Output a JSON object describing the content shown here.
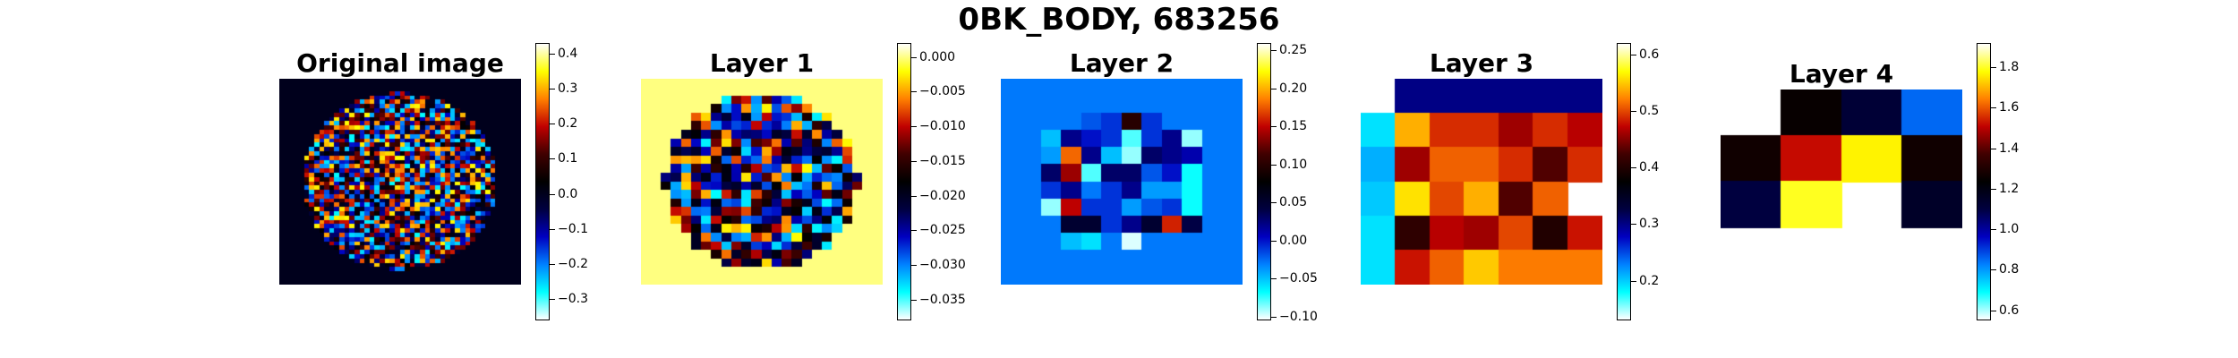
{
  "figure": {
    "suptitle": "0BK_BODY, 683256"
  },
  "colormap": {
    "name": "diverging-flag",
    "stops": [
      "#ffffff",
      "#00ffff",
      "#0080ff",
      "#0000c0",
      "#000040",
      "#000000",
      "#400000",
      "#c00000",
      "#ff8000",
      "#ffff00",
      "#ffffff"
    ]
  },
  "chart_data": [
    {
      "type": "heatmap",
      "title": "Original image",
      "grid": [
        48,
        48
      ],
      "shape": "disc",
      "background_value": 0.0,
      "colorbar": {
        "vmin": -0.36,
        "vmax": 0.43,
        "ticks": [
          -0.3,
          -0.2,
          -0.1,
          0.0,
          0.1,
          0.2,
          0.3,
          0.4
        ],
        "tick_labels": [
          "−0.3",
          "−0.2",
          "−0.1",
          "0.0",
          "0.1",
          "0.2",
          "0.3",
          "0.4"
        ]
      }
    },
    {
      "type": "heatmap",
      "title": "Layer 1",
      "grid": [
        24,
        24
      ],
      "shape": "disc",
      "background_value": 0.0,
      "colorbar": {
        "vmin": -0.038,
        "vmax": 0.002,
        "ticks": [
          -0.035,
          -0.03,
          -0.025,
          -0.02,
          -0.015,
          -0.01,
          -0.005,
          0.0
        ],
        "tick_labels": [
          "−0.035",
          "−0.030",
          "−0.025",
          "−0.020",
          "−0.015",
          "−0.010",
          "−0.005",
          "0.000"
        ]
      }
    },
    {
      "type": "heatmap",
      "title": "Layer 2",
      "grid": [
        12,
        12
      ],
      "values": [
        [
          -0.03,
          -0.03,
          -0.03,
          -0.03,
          -0.03,
          -0.03,
          -0.03,
          -0.03,
          -0.03,
          -0.03,
          -0.03,
          -0.03
        ],
        [
          -0.03,
          -0.03,
          -0.03,
          -0.03,
          -0.03,
          -0.03,
          -0.03,
          -0.03,
          -0.03,
          -0.03,
          -0.03,
          -0.03
        ],
        [
          -0.03,
          -0.03,
          -0.03,
          -0.03,
          -0.02,
          -0.01,
          0.1,
          -0.01,
          -0.03,
          -0.03,
          -0.03,
          -0.03
        ],
        [
          -0.03,
          -0.03,
          -0.05,
          0.02,
          0.0,
          -0.01,
          -0.08,
          -0.01,
          0.02,
          -0.09,
          -0.03,
          -0.03
        ],
        [
          -0.03,
          -0.03,
          -0.04,
          0.18,
          0.02,
          -0.05,
          -0.09,
          0.03,
          0.02,
          0.01,
          -0.03,
          -0.03
        ],
        [
          -0.03,
          -0.03,
          0.03,
          0.14,
          -0.08,
          0.03,
          0.03,
          -0.02,
          0.0,
          -0.07,
          -0.03,
          -0.03
        ],
        [
          -0.03,
          -0.03,
          -0.01,
          0.02,
          -0.03,
          -0.01,
          0.02,
          -0.04,
          -0.04,
          -0.07,
          -0.03,
          -0.03
        ],
        [
          -0.03,
          -0.03,
          -0.09,
          0.15,
          -0.01,
          -0.01,
          -0.04,
          -0.02,
          -0.01,
          -0.07,
          -0.03,
          -0.03
        ],
        [
          -0.03,
          -0.03,
          -0.03,
          0.05,
          0.05,
          -0.01,
          0.02,
          0.05,
          0.16,
          0.04,
          -0.03,
          -0.03
        ],
        [
          -0.03,
          -0.03,
          -0.03,
          -0.05,
          -0.06,
          -0.03,
          -0.1,
          -0.03,
          -0.03,
          -0.03,
          -0.03,
          -0.03
        ],
        [
          -0.03,
          -0.03,
          -0.03,
          -0.03,
          -0.03,
          -0.03,
          -0.03,
          -0.03,
          -0.03,
          -0.03,
          -0.03,
          -0.03
        ],
        [
          -0.03,
          -0.03,
          -0.03,
          -0.03,
          -0.03,
          -0.03,
          -0.03,
          -0.03,
          -0.03,
          -0.03,
          -0.03,
          -0.03
        ]
      ],
      "colorbar": {
        "vmin": -0.105,
        "vmax": 0.26,
        "ticks": [
          -0.1,
          -0.05,
          0.0,
          0.05,
          0.1,
          0.15,
          0.2,
          0.25
        ],
        "tick_labels": [
          "−0.10",
          "−0.05",
          "0.00",
          "0.05",
          "0.10",
          "0.15",
          "0.20",
          "0.25"
        ]
      }
    },
    {
      "type": "heatmap",
      "title": "Layer 3",
      "grid": [
        6,
        7
      ],
      "values": [
        [
          null,
          0.3,
          0.3,
          0.3,
          0.3,
          0.3,
          0.3
        ],
        [
          0.19,
          0.54,
          0.49,
          0.49,
          0.46,
          0.49,
          0.47
        ],
        [
          0.21,
          0.46,
          0.51,
          0.51,
          0.49,
          0.43,
          0.49
        ],
        [
          0.2,
          0.56,
          0.5,
          0.54,
          0.43,
          0.51,
          null
        ],
        [
          0.19,
          0.41,
          0.47,
          0.46,
          0.5,
          0.4,
          0.48
        ],
        [
          0.19,
          0.48,
          0.51,
          0.55,
          0.52,
          0.52,
          0.52
        ]
      ],
      "colorbar": {
        "vmin": 0.13,
        "vmax": 0.62,
        "ticks": [
          0.2,
          0.3,
          0.4,
          0.5,
          0.6
        ],
        "tick_labels": [
          "0.2",
          "0.3",
          "0.4",
          "0.5",
          "0.6"
        ]
      }
    },
    {
      "type": "heatmap",
      "title": "Layer 4",
      "grid": [
        4,
        4
      ],
      "values": [
        [
          null,
          1.25,
          1.12,
          0.85
        ],
        [
          1.27,
          1.52,
          1.77,
          1.27
        ],
        [
          1.1,
          1.8,
          null,
          1.15
        ],
        [
          null,
          null,
          null,
          null
        ]
      ],
      "colorbar": {
        "vmin": 0.55,
        "vmax": 1.92,
        "ticks": [
          0.6,
          0.8,
          1.0,
          1.2,
          1.4,
          1.6,
          1.8
        ],
        "tick_labels": [
          "0.6",
          "0.8",
          "1.0",
          "1.2",
          "1.4",
          "1.6",
          "1.8"
        ]
      }
    }
  ]
}
